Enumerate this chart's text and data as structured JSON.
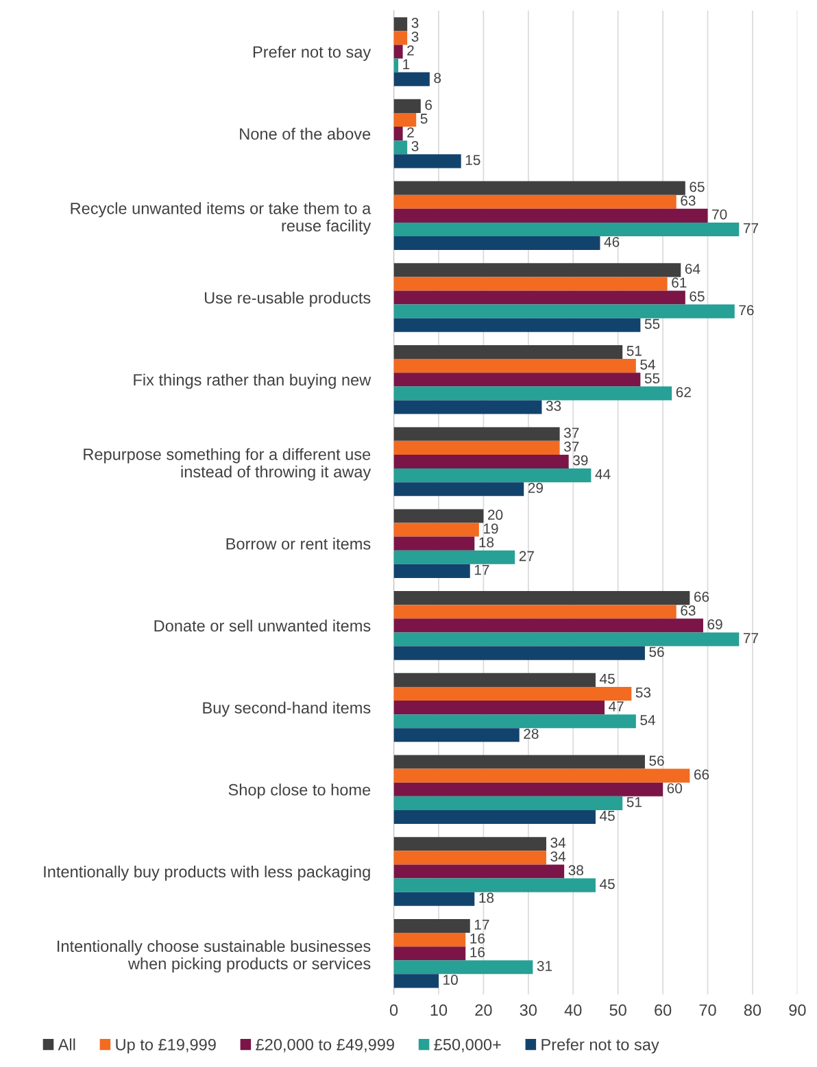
{
  "chart_data": {
    "type": "bar",
    "orientation": "horizontal",
    "categories": [
      "Prefer not to say",
      "None of the above",
      "Recycle unwanted items or take them to a\nreuse facility",
      "Use re-usable products",
      "Fix things rather than buying new",
      "Repurpose something for a different use\ninstead of throwing it away",
      "Borrow or rent items",
      "Donate or sell unwanted items",
      "Buy second-hand items",
      "Shop close to home",
      "Intentionally buy products with less packaging",
      "Intentionally choose sustainable businesses\nwhen picking products or services"
    ],
    "series": [
      {
        "name": "All",
        "color": "#404040",
        "values": [
          3,
          6,
          65,
          64,
          51,
          37,
          20,
          66,
          45,
          56,
          34,
          17
        ]
      },
      {
        "name": "Up to £19,999",
        "color": "#f26b21",
        "values": [
          3,
          5,
          63,
          61,
          54,
          37,
          19,
          63,
          53,
          66,
          34,
          16
        ]
      },
      {
        "name": "£20,000 to £49,999",
        "color": "#7b1547",
        "values": [
          2,
          2,
          70,
          65,
          55,
          39,
          18,
          69,
          47,
          60,
          38,
          16
        ]
      },
      {
        "name": "£50,000+",
        "color": "#27a096",
        "values": [
          1,
          3,
          77,
          76,
          62,
          44,
          27,
          77,
          54,
          51,
          45,
          31
        ]
      },
      {
        "name": "Prefer not to say",
        "color": "#12436d",
        "values": [
          8,
          15,
          46,
          55,
          33,
          29,
          17,
          56,
          28,
          45,
          18,
          10
        ]
      }
    ],
    "xlim": [
      0,
      90
    ],
    "xticks": [
      0,
      10,
      20,
      30,
      40,
      50,
      60,
      70,
      80,
      90
    ],
    "grid": "x",
    "legend": "bottom",
    "data_labels": true
  }
}
